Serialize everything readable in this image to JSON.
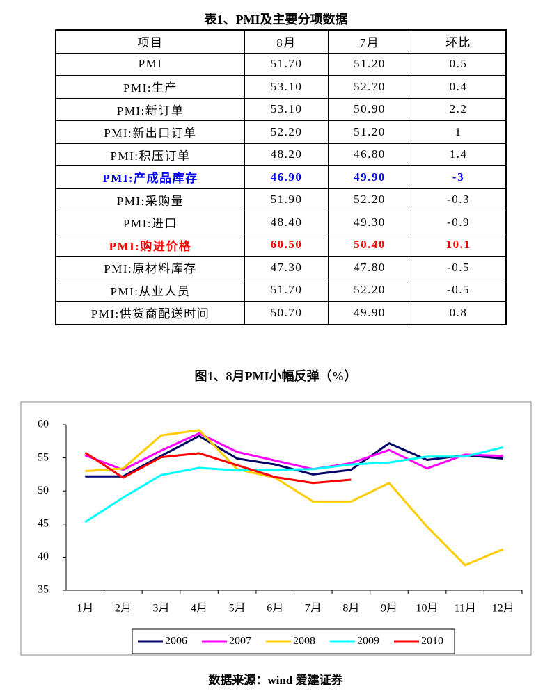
{
  "table": {
    "title": "表1、PMI及主要分项数据",
    "header": [
      "项目",
      "8月",
      "7月",
      "环比"
    ],
    "rows": [
      [
        "PMI",
        "51.70",
        "51.20",
        "0.5"
      ],
      [
        "PMI:生产",
        "53.10",
        "52.70",
        "0.4"
      ],
      [
        "PMI:新订单",
        "53.10",
        "50.90",
        "2.2"
      ],
      [
        "PMI:新出口订单",
        "52.20",
        "51.20",
        "1"
      ],
      [
        "PMI:积压订单",
        "48.20",
        "46.80",
        "1.4"
      ],
      [
        "PMI:产成品库存",
        "46.90",
        "49.90",
        "-3"
      ],
      [
        "PMI:采购量",
        "51.90",
        "52.20",
        "-0.3"
      ],
      [
        "PMI:进口",
        "48.40",
        "49.30",
        "-0.9"
      ],
      [
        "PMI:购进价格",
        "60.50",
        "50.40",
        "10.1"
      ],
      [
        "PMI:原材料库存",
        "47.30",
        "47.80",
        "-0.5"
      ],
      [
        "PMI:从业人员",
        "51.70",
        "52.20",
        "-0.5"
      ],
      [
        "PMI:供货商配送时间",
        "50.70",
        "49.90",
        "0.8"
      ]
    ],
    "highlights": [
      {
        "row": 5,
        "color": "#0000ff"
      },
      {
        "row": 8,
        "color": "#ff0000"
      }
    ]
  },
  "chart_data": {
    "type": "line",
    "title": "图1、8月PMI小幅反弹（%）",
    "categories": [
      "1月",
      "2月",
      "3月",
      "4月",
      "5月",
      "6月",
      "7月",
      "8月",
      "9月",
      "10月",
      "11月",
      "12月"
    ],
    "series": [
      {
        "name": "2006",
        "color": "#000066",
        "values": [
          52.2,
          52.2,
          55.3,
          58.3,
          54.9,
          54.0,
          52.5,
          53.2,
          57.2,
          54.7,
          55.4,
          54.9
        ]
      },
      {
        "name": "2007",
        "color": "#ff00ff",
        "values": [
          55.4,
          53.2,
          56.1,
          58.7,
          55.9,
          54.6,
          53.3,
          54.2,
          56.2,
          53.4,
          55.5,
          55.3
        ]
      },
      {
        "name": "2008",
        "color": "#ffcc00",
        "values": [
          53.0,
          53.4,
          58.4,
          59.2,
          53.3,
          52.0,
          48.4,
          48.4,
          51.2,
          44.6,
          38.8,
          41.2
        ]
      },
      {
        "name": "2009",
        "color": "#00ffff",
        "values": [
          45.3,
          49.0,
          52.4,
          53.5,
          53.1,
          53.2,
          53.3,
          54.0,
          54.3,
          55.2,
          55.2,
          56.6
        ]
      },
      {
        "name": "2010",
        "color": "#ff0000",
        "values": [
          55.8,
          52.0,
          55.1,
          55.7,
          53.9,
          52.1,
          51.2,
          51.7,
          null,
          null,
          null,
          null
        ]
      }
    ],
    "ylim": [
      35,
      60
    ],
    "yticks": [
      35,
      40,
      45,
      50,
      55,
      60
    ],
    "grid": false,
    "legend": "bottom"
  },
  "source": "数据来源：wind 爱建证券"
}
